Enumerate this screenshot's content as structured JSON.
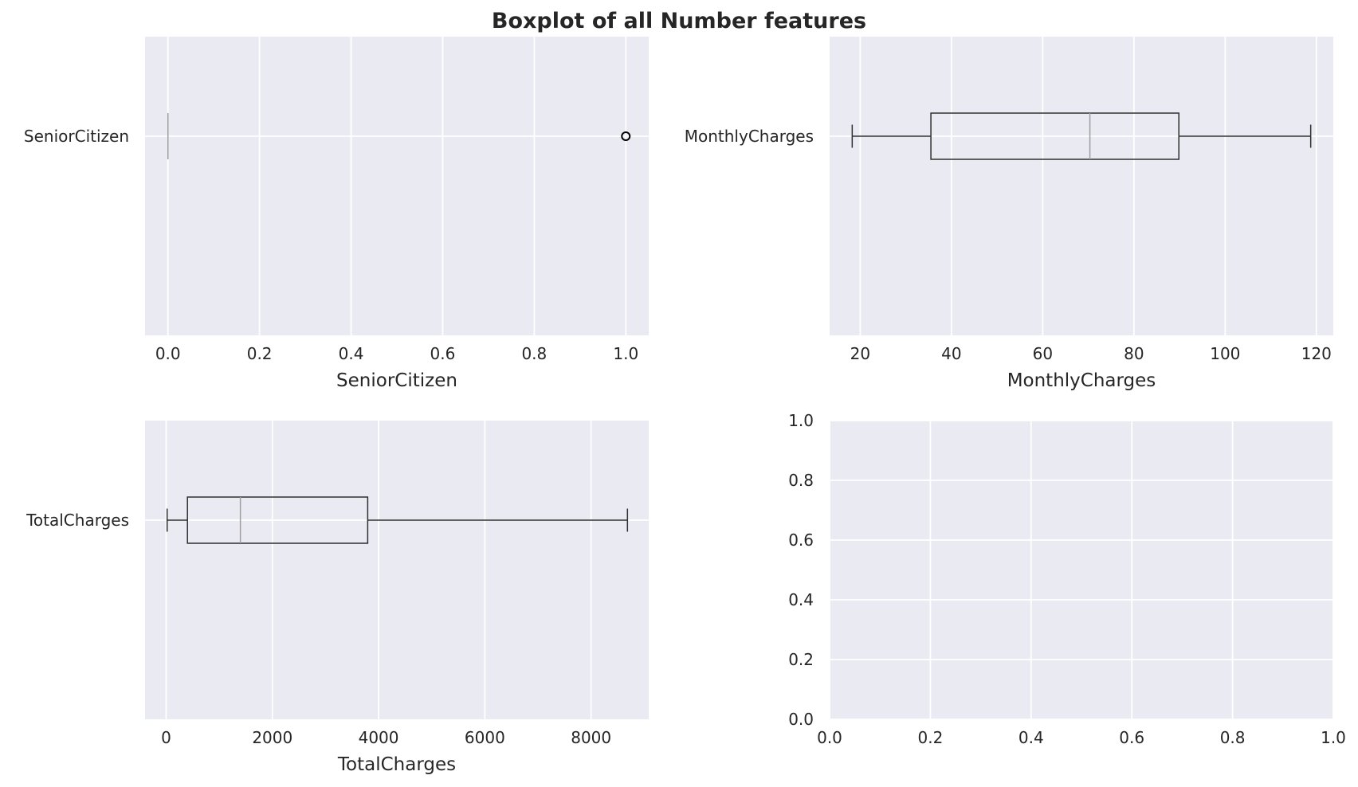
{
  "figure_title": "Boxplot of all Number features",
  "chart_data": [
    {
      "type": "boxplot",
      "orientation": "horizontal",
      "category": "SeniorCitizen",
      "xlabel": "SeniorCitizen",
      "xlim": [
        -0.05,
        1.05
      ],
      "xticks": [
        0.0,
        0.2,
        0.4,
        0.6,
        0.8,
        1.0
      ],
      "xtick_labels": [
        "0.0",
        "0.2",
        "0.4",
        "0.6",
        "0.8",
        "1.0"
      ],
      "stats": {
        "whislo": 0,
        "q1": 0,
        "med": 0,
        "q3": 0,
        "whishi": 0
      },
      "outliers": [
        1.0
      ],
      "grid": true
    },
    {
      "type": "boxplot",
      "orientation": "horizontal",
      "category": "MonthlyCharges",
      "xlabel": "MonthlyCharges",
      "xlim": [
        13.3,
        123.7
      ],
      "xticks": [
        20,
        40,
        60,
        80,
        100,
        120
      ],
      "xtick_labels": [
        "20",
        "40",
        "60",
        "80",
        "100",
        "120"
      ],
      "stats": {
        "whislo": 18.25,
        "q1": 35.5,
        "med": 70.35,
        "q3": 89.85,
        "whishi": 118.75
      },
      "outliers": [],
      "grid": true
    },
    {
      "type": "boxplot",
      "orientation": "horizontal",
      "category": "TotalCharges",
      "xlabel": "TotalCharges",
      "xlim": [
        -397,
        9085
      ],
      "xticks": [
        0,
        2000,
        4000,
        6000,
        8000
      ],
      "xtick_labels": [
        "0",
        "2000",
        "4000",
        "6000",
        "8000"
      ],
      "stats": {
        "whislo": 18.8,
        "q1": 401.4,
        "med": 1397.5,
        "q3": 3794.7,
        "whishi": 8684.8
      },
      "outliers": [],
      "grid": true
    },
    {
      "type": "empty",
      "xlim": [
        0.0,
        1.0
      ],
      "ylim": [
        0.0,
        1.0
      ],
      "xticks": [
        0.0,
        0.2,
        0.4,
        0.6,
        0.8,
        1.0
      ],
      "xtick_labels": [
        "0.0",
        "0.2",
        "0.4",
        "0.6",
        "0.8",
        "1.0"
      ],
      "yticks": [
        0.0,
        0.2,
        0.4,
        0.6,
        0.8,
        1.0
      ],
      "ytick_labels": [
        "0.0",
        "0.2",
        "0.4",
        "0.6",
        "0.8",
        "1.0"
      ],
      "grid": true
    }
  ],
  "colors": {
    "axes_background": "#eaeaf2",
    "grid": "#ffffff",
    "box_edge": "#2f2f2f",
    "median": "#9e9e9e",
    "text": "#262626"
  }
}
